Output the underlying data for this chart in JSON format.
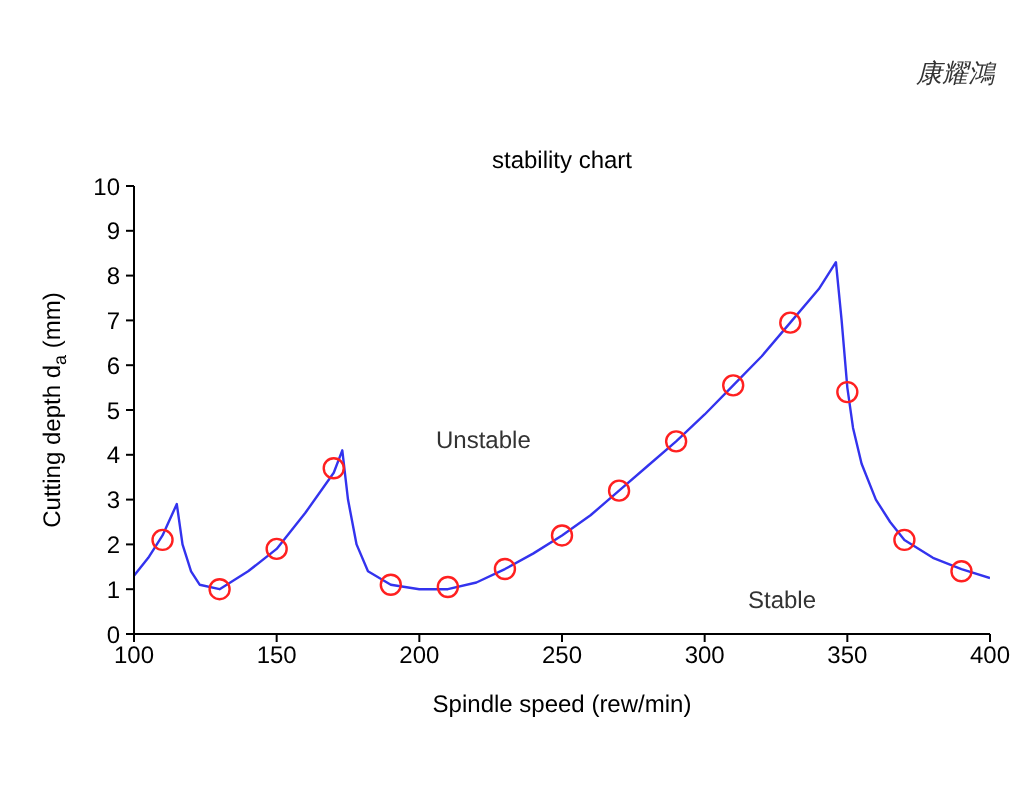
{
  "chart_data": {
    "type": "line",
    "title": "stability chart",
    "xlabel": "Spindle speed (rew/min)",
    "ylabel": "Cutting depth d$_{a}$ (mm)",
    "annotations": [
      "Unstable",
      "Stable",
      "康耀鴻"
    ],
    "xlim": [
      100,
      400
    ],
    "xticks": [
      100,
      150,
      200,
      250,
      300,
      350,
      400
    ],
    "ylim": [
      0,
      10
    ],
    "yticks": [
      0,
      1,
      2,
      3,
      4,
      5,
      6,
      7,
      8,
      9,
      10
    ],
    "grid": false,
    "legend": false,
    "series": [
      {
        "type": "line",
        "color": "#3333ee",
        "marker": "none",
        "line_style": "solid",
        "x": [
          100,
          105,
          110,
          115,
          117,
          120,
          123,
          130,
          140,
          150,
          160,
          170,
          173,
          175,
          178,
          182,
          190,
          200,
          210,
          220,
          230,
          240,
          250,
          260,
          270,
          280,
          290,
          300,
          310,
          320,
          330,
          340,
          346,
          348,
          350,
          352,
          355,
          360,
          365,
          370,
          380,
          390,
          400
        ],
        "values": [
          1.3,
          1.7,
          2.2,
          2.9,
          2.0,
          1.4,
          1.1,
          1.0,
          1.4,
          1.9,
          2.7,
          3.6,
          4.1,
          3.0,
          2.0,
          1.4,
          1.1,
          1.0,
          1.0,
          1.15,
          1.45,
          1.8,
          2.2,
          2.65,
          3.2,
          3.75,
          4.3,
          4.9,
          5.55,
          6.2,
          6.95,
          7.7,
          8.3,
          7.0,
          5.5,
          4.6,
          3.8,
          3.0,
          2.5,
          2.1,
          1.7,
          1.45,
          1.25
        ]
      },
      {
        "type": "scatter",
        "color": "#ff2020",
        "marker": "circle",
        "x": [
          110,
          130,
          150,
          170,
          190,
          210,
          230,
          250,
          270,
          290,
          310,
          330,
          350,
          370,
          390
        ],
        "values": [
          2.1,
          1.0,
          1.9,
          3.7,
          1.1,
          1.05,
          1.45,
          2.2,
          3.2,
          4.3,
          5.55,
          6.95,
          5.4,
          2.1,
          1.4
        ]
      }
    ]
  }
}
